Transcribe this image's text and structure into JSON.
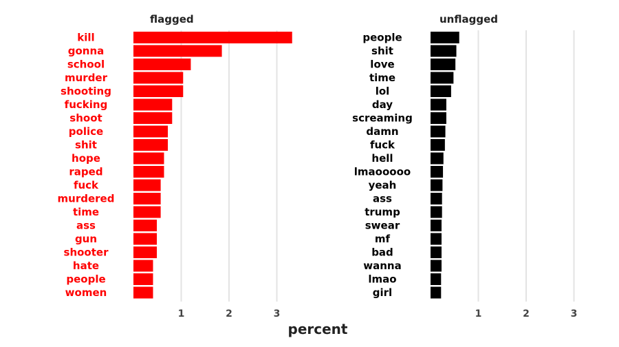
{
  "chart_data": [
    {
      "type": "bar",
      "orientation": "horizontal",
      "title": "flagged",
      "color": "#ff0000",
      "label_color": "#ff0000",
      "categories": [
        "kill",
        "gonna",
        "school",
        "murder",
        "shooting",
        "fucking",
        "shoot",
        "police",
        "shit",
        "hope",
        "raped",
        "fuck",
        "murdered",
        "time",
        "ass",
        "gun",
        "shooter",
        "hate",
        "people",
        "women"
      ],
      "values": [
        3.32,
        1.85,
        1.2,
        1.04,
        1.04,
        0.81,
        0.81,
        0.72,
        0.72,
        0.64,
        0.64,
        0.57,
        0.57,
        0.57,
        0.49,
        0.49,
        0.49,
        0.41,
        0.41,
        0.41
      ],
      "xticks": [
        1,
        2,
        3
      ],
      "xlim": [
        0,
        3.5
      ],
      "grid": true
    },
    {
      "type": "bar",
      "orientation": "horizontal",
      "title": "unflagged",
      "color": "#000000",
      "label_color": "#000000",
      "categories": [
        "people",
        "shit",
        "love",
        "time",
        "lol",
        "day",
        "screaming",
        "damn",
        "fuck",
        "hell",
        "lmaooooo",
        "yeah",
        "ass",
        "trump",
        "swear",
        "mf",
        "bad",
        "wanna",
        "lmao",
        "girl"
      ],
      "values": [
        0.6,
        0.54,
        0.52,
        0.48,
        0.43,
        0.33,
        0.33,
        0.31,
        0.3,
        0.27,
        0.26,
        0.25,
        0.24,
        0.24,
        0.23,
        0.23,
        0.23,
        0.23,
        0.22,
        0.22
      ],
      "xticks": [
        1,
        2,
        3
      ],
      "xlim": [
        0,
        3.5
      ],
      "grid": true
    }
  ],
  "shared_xlabel": "percent"
}
